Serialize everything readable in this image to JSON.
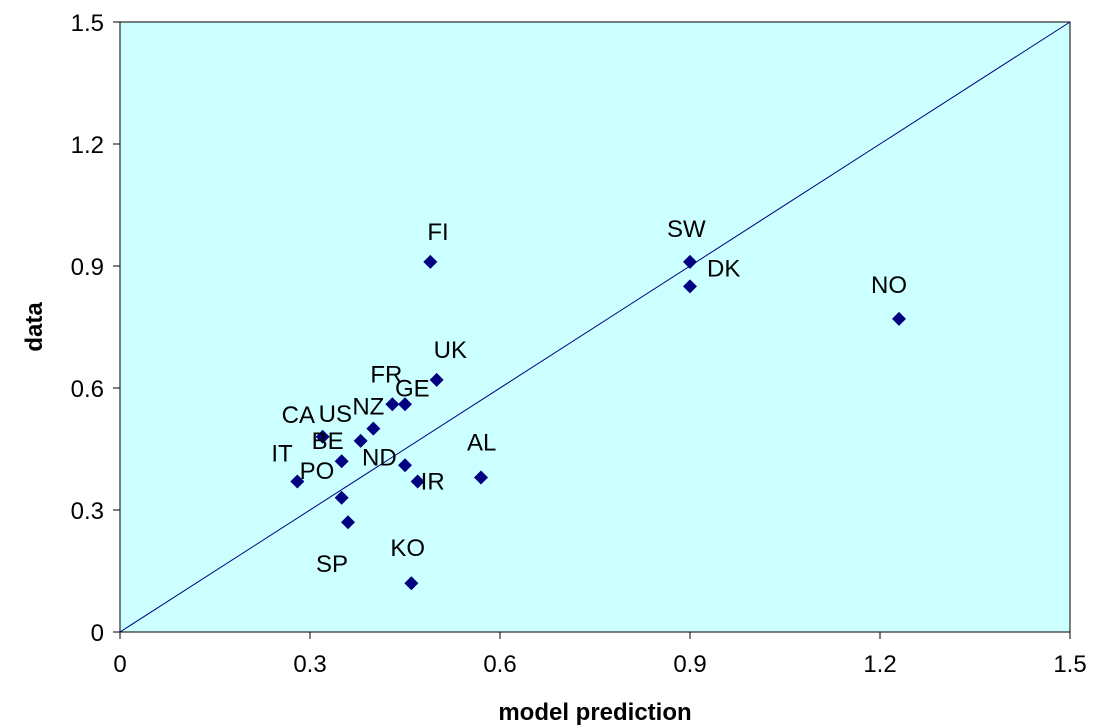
{
  "chart_data": {
    "type": "scatter",
    "title": "",
    "xlabel": "model prediction",
    "ylabel": "data",
    "xlim": [
      0,
      1.5
    ],
    "ylim": [
      0,
      1.5
    ],
    "xticks": [
      "0",
      "0.3",
      "0.6",
      "0.9",
      "1.2",
      "1.5"
    ],
    "yticks": [
      "0",
      "0.3",
      "0.6",
      "0.9",
      "1.2",
      "1.5"
    ],
    "grid": false,
    "reference_line": {
      "type": "y=x",
      "color": "#000080"
    },
    "colors": {
      "plot_background": "#ccffff",
      "marker": "#000080",
      "line": "#000080"
    },
    "points": [
      {
        "label": "FI",
        "x": 0.49,
        "y": 0.91
      },
      {
        "label": "SW",
        "x": 0.9,
        "y": 0.91
      },
      {
        "label": "DK",
        "x": 0.9,
        "y": 0.85
      },
      {
        "label": "NO",
        "x": 1.23,
        "y": 0.77
      },
      {
        "label": "UK",
        "x": 0.5,
        "y": 0.62
      },
      {
        "label": "FR",
        "x": 0.43,
        "y": 0.56
      },
      {
        "label": "GE",
        "x": 0.45,
        "y": 0.56
      },
      {
        "label": "NZ",
        "x": 0.4,
        "y": 0.5
      },
      {
        "label": "US",
        "x": 0.38,
        "y": 0.47
      },
      {
        "label": "CA",
        "x": 0.32,
        "y": 0.48
      },
      {
        "label": "BE",
        "x": 0.35,
        "y": 0.42
      },
      {
        "label": "ND",
        "x": 0.45,
        "y": 0.41
      },
      {
        "label": "IR",
        "x": 0.47,
        "y": 0.37
      },
      {
        "label": "AL",
        "x": 0.57,
        "y": 0.38
      },
      {
        "label": "IT",
        "x": 0.28,
        "y": 0.37
      },
      {
        "label": "PO",
        "x": 0.35,
        "y": 0.33
      },
      {
        "label": "SP",
        "x": 0.36,
        "y": 0.27
      },
      {
        "label": "KO",
        "x": 0.46,
        "y": 0.12
      }
    ]
  }
}
